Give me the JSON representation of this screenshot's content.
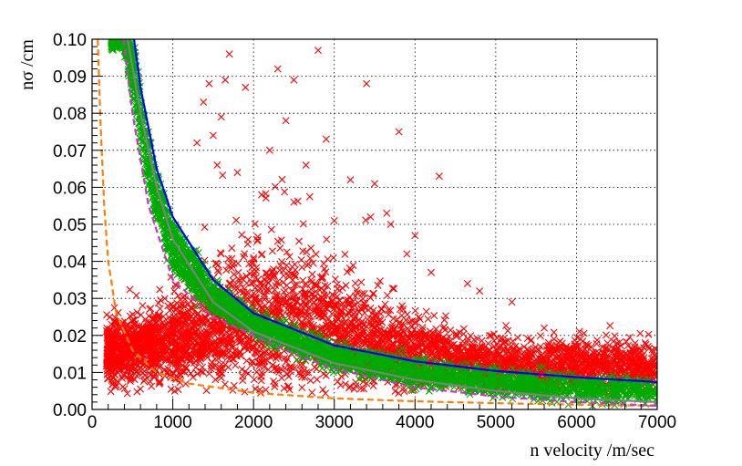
{
  "chart_data": {
    "type": "scatter",
    "title": "",
    "xlabel": "n velocity /m/sec",
    "ylabel": "nσ /cm",
    "xlim": [
      0,
      7000
    ],
    "ylim": [
      0,
      0.1
    ],
    "x_major_ticks": [
      0,
      1000,
      2000,
      3000,
      4000,
      5000,
      6000,
      7000
    ],
    "x_tick_labels": [
      "0",
      "1000",
      "2000",
      "3000",
      "4000",
      "5000",
      "6000",
      "7000"
    ],
    "y_major_ticks": [
      0,
      0.01,
      0.02,
      0.03,
      0.04,
      0.05,
      0.06,
      0.07,
      0.08,
      0.09,
      0.1
    ],
    "y_tick_labels": [
      "0.00",
      "0.01",
      "0.02",
      "0.03",
      "0.04",
      "0.05",
      "0.06",
      "0.07",
      "0.08",
      "0.09",
      "0.10"
    ],
    "grid": true,
    "marker": "x",
    "series": [
      {
        "color": "#ff0000",
        "marker": "x",
        "kind": "scatter",
        "cloud_centers": [
          [
            1200,
            0.015
          ],
          [
            2000,
            0.022
          ],
          [
            2700,
            0.022
          ],
          [
            3500,
            0.018
          ],
          [
            4500,
            0.014
          ],
          [
            5500,
            0.011
          ],
          [
            6500,
            0.009
          ]
        ],
        "points": [
          [
            2800,
            0.097
          ],
          [
            1700,
            0.096
          ],
          [
            2300,
            0.092
          ],
          [
            1650,
            0.089
          ],
          [
            1450,
            0.088
          ],
          [
            2500,
            0.089
          ],
          [
            3400,
            0.088
          ],
          [
            1900,
            0.087
          ],
          [
            1380,
            0.083
          ],
          [
            1600,
            0.079
          ],
          [
            3800,
            0.075
          ],
          [
            1500,
            0.074
          ],
          [
            4300,
            0.063
          ],
          [
            3500,
            0.061
          ],
          [
            3650,
            0.053
          ],
          [
            3450,
            0.052
          ],
          [
            3700,
            0.05
          ],
          [
            3900,
            0.042
          ],
          [
            4200,
            0.037
          ],
          [
            4800,
            0.032
          ],
          [
            5200,
            0.029
          ],
          [
            4650,
            0.034
          ],
          [
            5600,
            0.022
          ],
          [
            6050,
            0.019
          ],
          [
            5800,
            0.015
          ],
          [
            6400,
            0.012
          ],
          [
            6700,
            0.012
          ],
          [
            6900,
            0.01
          ],
          [
            4000,
            0.047
          ],
          [
            3000,
            0.051
          ],
          [
            2100,
            0.058
          ],
          [
            2500,
            0.056
          ],
          [
            1800,
            0.064
          ],
          [
            2200,
            0.07
          ],
          [
            2650,
            0.066
          ],
          [
            3200,
            0.062
          ],
          [
            2900,
            0.073
          ],
          [
            2400,
            0.078
          ],
          [
            1300,
            0.072
          ],
          [
            1550,
            0.066
          ]
        ]
      },
      {
        "color": "#00aa00",
        "marker": "x",
        "kind": "scatter",
        "follows": "band between dashed magenta and solid blue curves"
      },
      {
        "color": "#0000ff",
        "kind": "line",
        "style": "solid",
        "x": [
          520,
          600,
          800,
          1000,
          1500,
          2000,
          3000,
          4000,
          5000,
          6000,
          7000
        ],
        "y": [
          0.1,
          0.087,
          0.065,
          0.052,
          0.035,
          0.026,
          0.0173,
          0.013,
          0.0104,
          0.0087,
          0.0074
        ]
      },
      {
        "color": "#808080",
        "kind": "line",
        "style": "solid",
        "x": [
          440,
          600,
          800,
          1000,
          1500,
          2000,
          3000,
          4000,
          5000,
          6000,
          7000
        ],
        "y": [
          0.1,
          0.08,
          0.06,
          0.046,
          0.029,
          0.021,
          0.0125,
          0.008,
          0.005,
          0.003,
          0.002
        ]
      },
      {
        "color": "#cc33cc",
        "kind": "line",
        "style": "dashed",
        "x": [
          390,
          500,
          700,
          1000,
          1500,
          2000,
          2500,
          3000,
          4000,
          5000,
          6000,
          7000
        ],
        "y": [
          0.1,
          0.08,
          0.055,
          0.035,
          0.025,
          0.02,
          0.015,
          0.011,
          0.006,
          0.0035,
          0.002,
          0.001
        ]
      },
      {
        "color": "#ff8000",
        "kind": "line",
        "style": "dashed",
        "x": [
          70,
          100,
          150,
          200,
          300,
          500,
          800,
          1200,
          2000,
          3000,
          4000,
          5000,
          6000,
          7000
        ],
        "y": [
          0.1,
          0.08,
          0.055,
          0.04,
          0.026,
          0.016,
          0.01,
          0.007,
          0.0045,
          0.003,
          0.0022,
          0.0017,
          0.0013,
          0.001
        ]
      }
    ]
  }
}
